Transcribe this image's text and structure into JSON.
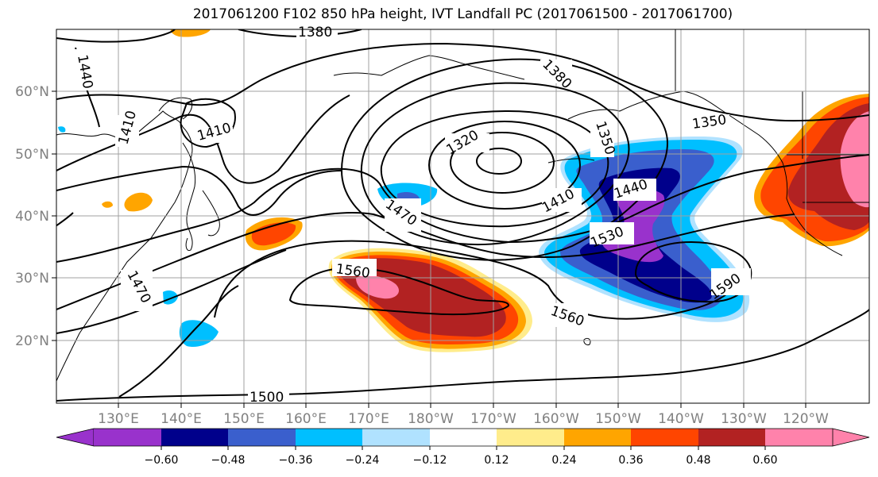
{
  "title": "2017061200 F102 850 hPa height, IVT Landfall PC (2017061500 - 2017061700)",
  "chart_data": {
    "type": "heatmap",
    "title": "2017061200 F102 850 hPa height, IVT Landfall PC (2017061500 - 2017061700)",
    "x_ticks": [
      "130°E",
      "140°E",
      "150°E",
      "160°E",
      "170°E",
      "180°W",
      "170°W",
      "160°W",
      "150°W",
      "140°W",
      "130°W",
      "120°W"
    ],
    "y_ticks": [
      "60°N",
      "50°N",
      "40°N",
      "30°N",
      "20°N"
    ],
    "colorbar": {
      "levels": [
        "−0.60",
        "−0.48",
        "−0.36",
        "−0.24",
        "−0.12",
        "0.12",
        "0.24",
        "0.36",
        "0.48",
        "0.60"
      ],
      "colors": [
        "#9932cc",
        "#00008b",
        "#3a5fcd",
        "#00bfff",
        "#b0e2ff",
        "#ffffff",
        "#ffec8b",
        "#ffa500",
        "#ff4500",
        "#b22222",
        "#ff82ab"
      ]
    },
    "contour_labels": [
      "1380",
      "1440",
      "1410",
      "1410",
      "1320",
      "1380",
      "1350",
      "1350",
      "1470",
      "1410",
      "1440",
      "1530",
      "1560",
      "1590",
      "1560",
      "1470",
      "1500"
    ],
    "grid": true
  }
}
